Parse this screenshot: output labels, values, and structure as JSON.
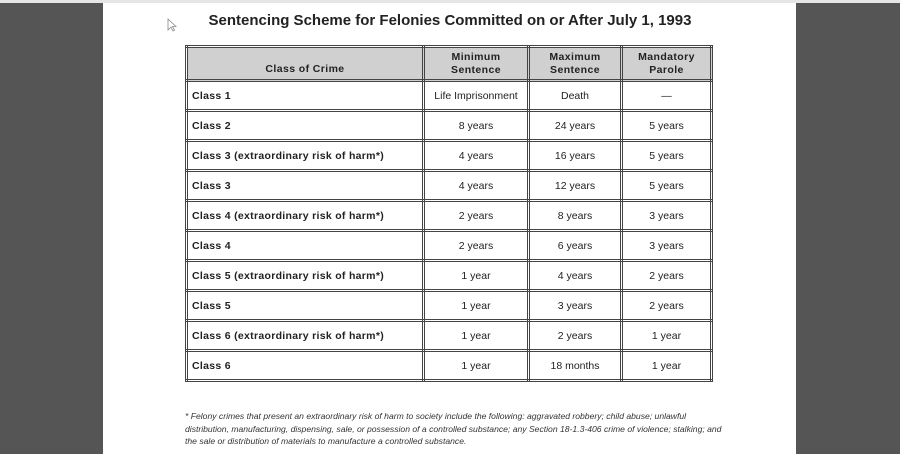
{
  "title": "Sentencing Scheme for Felonies Committed on or After July 1, 1993",
  "table": {
    "headers": [
      "Class of Crime",
      "Minimum Sentence",
      "Maximum Sentence",
      "Mandatory Parole"
    ],
    "rows": [
      [
        "Class 1",
        "Life Imprisonment",
        "Death",
        "—"
      ],
      [
        "Class 2",
        "8 years",
        "24 years",
        "5 years"
      ],
      [
        "Class 3 (extraordinary risk of harm*)",
        "4 years",
        "16 years",
        "5 years"
      ],
      [
        "Class 3",
        "4 years",
        "12 years",
        "5 years"
      ],
      [
        "Class 4 (extraordinary risk of harm*)",
        "2 years",
        "8 years",
        "3 years"
      ],
      [
        "Class 4",
        "2 years",
        "6 years",
        "3 years"
      ],
      [
        "Class 5 (extraordinary risk of harm*)",
        "1 year",
        "4 years",
        "2 years"
      ],
      [
        "Class 5",
        "1 year",
        "3 years",
        "2 years"
      ],
      [
        "Class 6 (extraordinary risk of harm*)",
        "1 year",
        "2 years",
        "1 year"
      ],
      [
        "Class 6",
        "1 year",
        "18 months",
        "1 year"
      ]
    ]
  },
  "footnote": "* Felony crimes that present an extraordinary risk of harm to society include the following: aggravated robbery; child abuse; unlawful distribution, manufacturing, dispensing, sale, or possession of a controlled substance; any Section 18-1.3-406 crime of violence; stalking; and the sale or distribution of materials to manufacture a controlled substance.",
  "icons": {
    "cursor": "mouse-pointer-icon"
  }
}
